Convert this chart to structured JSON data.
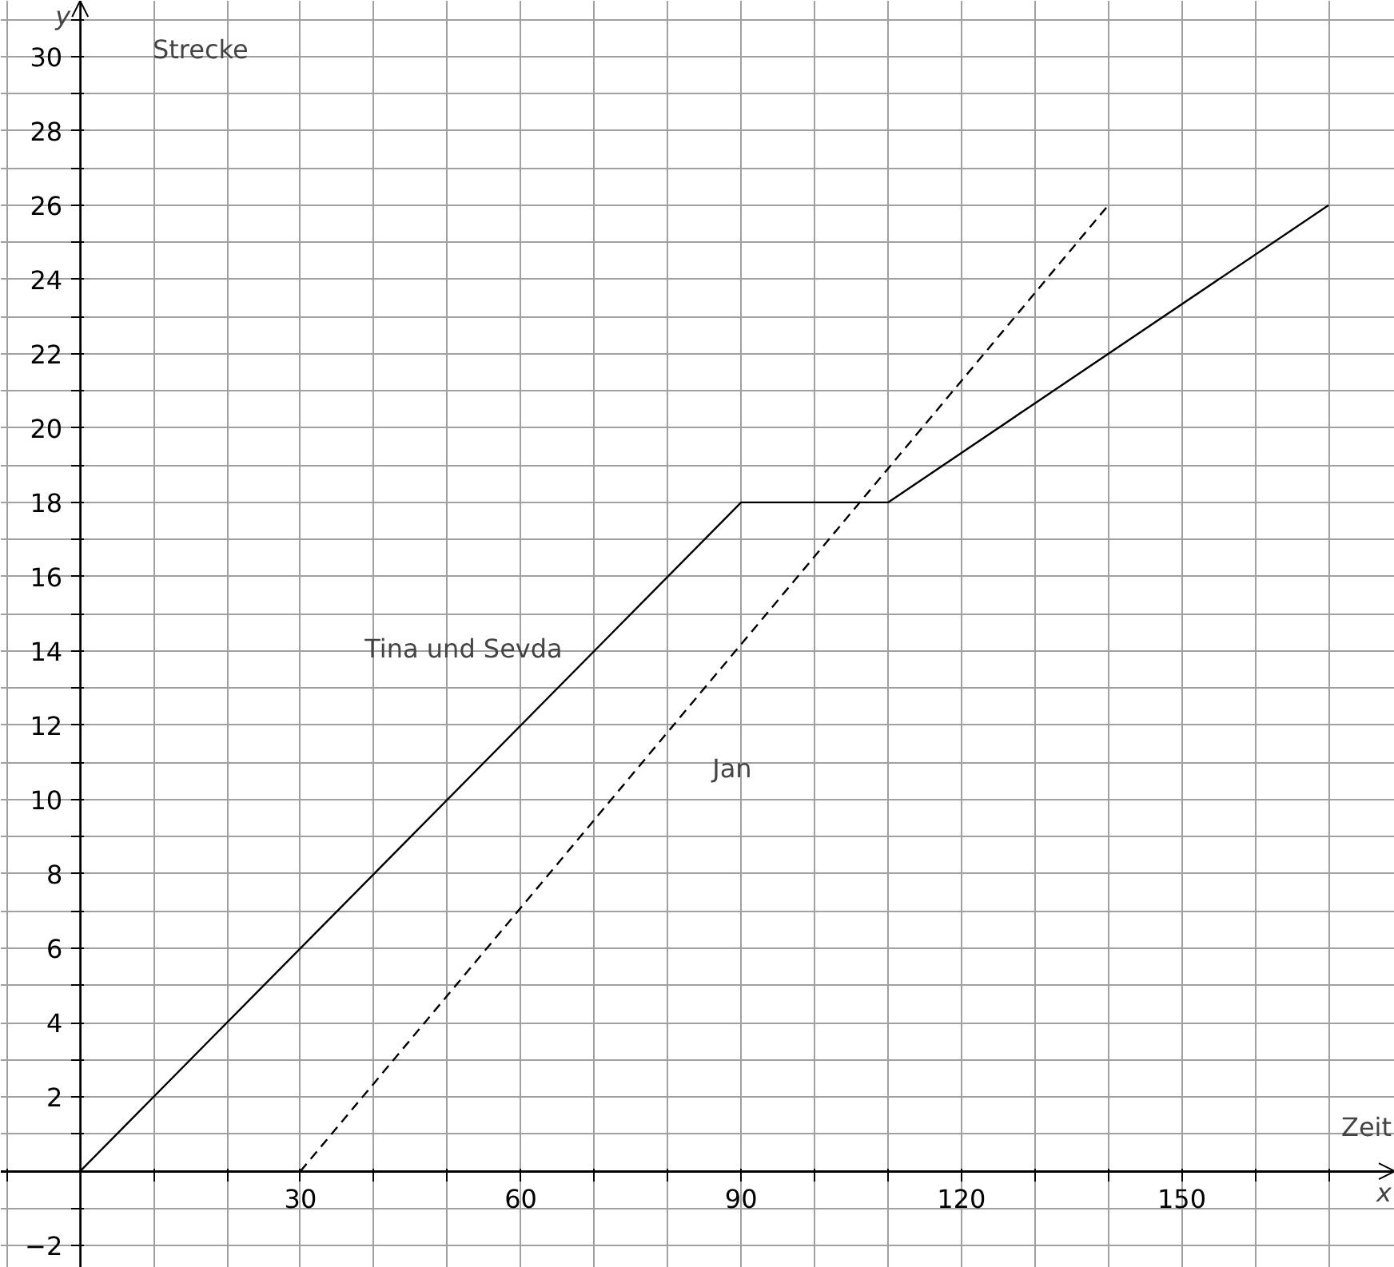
{
  "chart_data": {
    "type": "line",
    "xlabel": "x",
    "ylabel": "y",
    "annotations": [
      "Strecke",
      "Zeit"
    ],
    "xlim": [
      -10.8,
      179
    ],
    "ylim": [
      -2.6,
      31.5
    ],
    "xticks": [
      {
        "value": -10,
        "label": null
      },
      {
        "value": 10,
        "label": null
      },
      {
        "value": 20,
        "label": null
      },
      30,
      {
        "value": 40,
        "label": null
      },
      {
        "value": 50,
        "label": null
      },
      60,
      {
        "value": 70,
        "label": null
      },
      {
        "value": 80,
        "label": null
      },
      90,
      {
        "value": 100,
        "label": null
      },
      {
        "value": 110,
        "label": null
      },
      120,
      {
        "value": 130,
        "label": null
      },
      {
        "value": 140,
        "label": null
      },
      150,
      {
        "value": 160,
        "label": null
      },
      {
        "value": 170,
        "label": null
      }
    ],
    "yticks": [
      {
        "value": -2,
        "label": "−2"
      },
      {
        "value": -1,
        "label": null
      },
      {
        "value": 1,
        "label": null
      },
      2,
      {
        "value": 3,
        "label": null
      },
      4,
      {
        "value": 5,
        "label": null
      },
      6,
      {
        "value": 7,
        "label": null
      },
      8,
      {
        "value": 9,
        "label": null
      },
      10,
      {
        "value": 11,
        "label": null
      },
      12,
      {
        "value": 13,
        "label": null
      },
      14,
      {
        "value": 15,
        "label": null
      },
      16,
      {
        "value": 17,
        "label": null
      },
      18,
      {
        "value": 19,
        "label": null
      },
      20,
      {
        "value": 21,
        "label": null
      },
      22,
      {
        "value": 23,
        "label": null
      },
      24,
      {
        "value": 25,
        "label": null
      },
      26,
      {
        "value": 27,
        "label": null
      },
      28,
      {
        "value": 29,
        "label": null
      },
      30,
      {
        "value": 31,
        "label": null
      }
    ],
    "grid": true,
    "legend": false,
    "series": [
      {
        "name": "Tina und Sevda",
        "color": "#000000",
        "line_style": "solid",
        "x": [
          0,
          90,
          110,
          170
        ],
        "values": [
          0,
          18,
          18,
          26
        ]
      },
      {
        "name": "Jan",
        "color": "#000000",
        "line_style": "dashed",
        "x": [
          30,
          140
        ],
        "values": [
          0,
          26
        ]
      }
    ]
  }
}
